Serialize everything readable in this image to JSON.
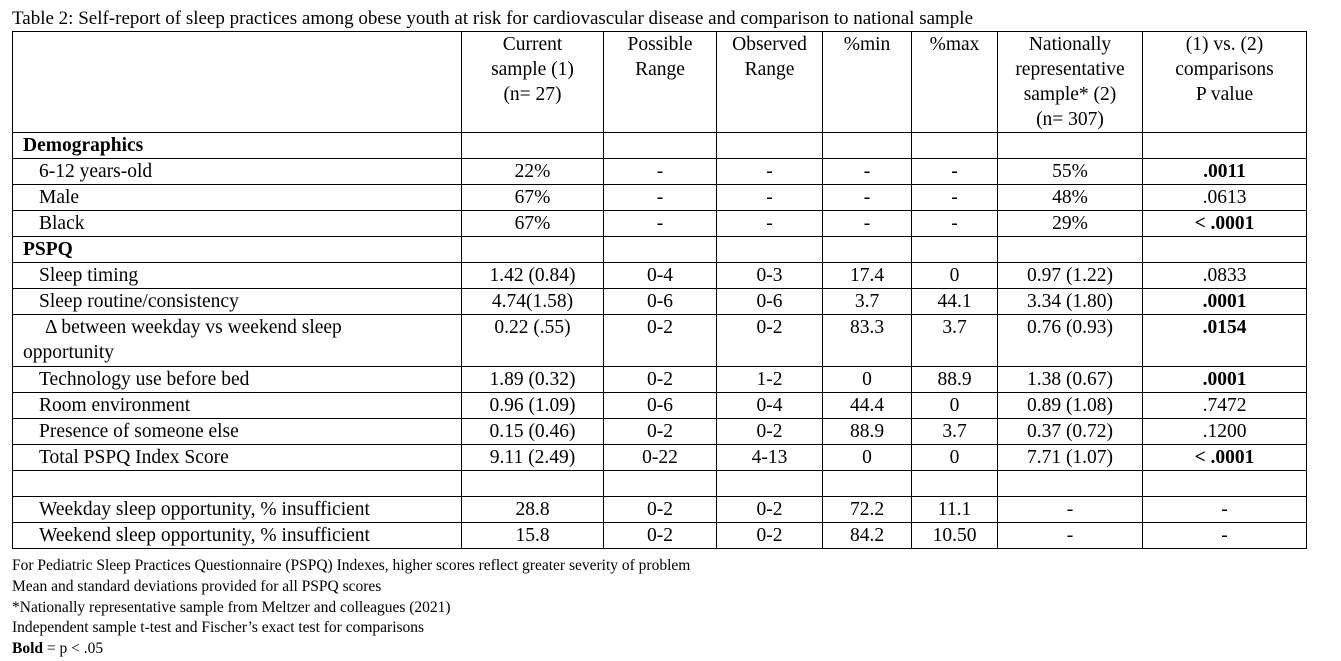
{
  "caption": "Table 2: Self-report of sleep practices among obese youth at risk for cardiovascular disease and comparison to national sample",
  "headers": {
    "current": [
      "Current",
      "sample (1)",
      "(n= 27)"
    ],
    "possible": [
      "Possible",
      "Range"
    ],
    "observed": [
      "Observed",
      "Range"
    ],
    "pmin": "%min",
    "pmax": "%max",
    "national": [
      "Nationally",
      "representative",
      "sample* (2)",
      "(n= 307)"
    ],
    "comparison": [
      "(1) vs. (2)",
      "comparisons",
      "P value"
    ]
  },
  "sections": {
    "demographics": "Demographics",
    "pspq": "PSPQ"
  },
  "rows": {
    "age": [
      "6-12 years-old",
      "22%",
      "-",
      "-",
      "-",
      "-",
      "55%",
      ".0011"
    ],
    "male": [
      "Male",
      "67%",
      "-",
      "-",
      "-",
      "-",
      "48%",
      ".0613"
    ],
    "black": [
      "Black",
      "67%",
      "-",
      "-",
      "-",
      "-",
      "29%",
      "< .0001"
    ],
    "timing": [
      "Sleep timing",
      "1.42 (0.84)",
      "0-4",
      "0-3",
      "17.4",
      "0",
      "0.97 (1.22)",
      ".0833"
    ],
    "routine": [
      "Sleep routine/consistency",
      "4.74(1.58)",
      "0-6",
      "0-6",
      "3.7",
      "44.1",
      "3.34 (1.80)",
      ".0001"
    ],
    "delta_a": "Δ between weekday vs weekend sleep",
    "delta_b": "opportunity",
    "delta": [
      "0.22 (.55)",
      "0-2",
      "0-2",
      "83.3",
      "3.7",
      "0.76 (0.93)",
      ".0154"
    ],
    "tech": [
      "Technology use before bed",
      "1.89 (0.32)",
      "0-2",
      "1-2",
      "0",
      "88.9",
      "1.38 (0.67)",
      ".0001"
    ],
    "room": [
      "Room environment",
      "0.96 (1.09)",
      "0-6",
      "0-4",
      "44.4",
      "0",
      "0.89 (1.08)",
      ".7472"
    ],
    "someone": [
      "Presence of someone else",
      "0.15 (0.46)",
      "0-2",
      "0-2",
      "88.9",
      "3.7",
      "0.37 (0.72)",
      ".1200"
    ],
    "total": [
      "Total PSPQ Index Score",
      "9.11 (2.49)",
      "0-22",
      "4-13",
      "0",
      "0",
      "7.71 (1.07)",
      "< .0001"
    ],
    "weekday": [
      "Weekday sleep opportunity, % insufficient",
      "28.8",
      "0-2",
      "0-2",
      "72.2",
      "11.1",
      "-",
      "-"
    ],
    "weekend": [
      "Weekend sleep opportunity, % insufficient",
      "15.8",
      "0-2",
      "0-2",
      "84.2",
      "10.50",
      "-",
      "-"
    ]
  },
  "footnotes": {
    "line1": "For Pediatric Sleep Practices Questionnaire (PSPQ) Indexes, higher scores reflect greater severity of problem",
    "line2": "Mean and standard deviations provided for all PSPQ scores",
    "line3": "*Nationally representative sample from Meltzer and colleagues (2021)",
    "line4": "Independent sample t-test and Fischer’s exact test for comparisons",
    "bold_word": "Bold",
    "bold_rest": " = p < .05"
  }
}
